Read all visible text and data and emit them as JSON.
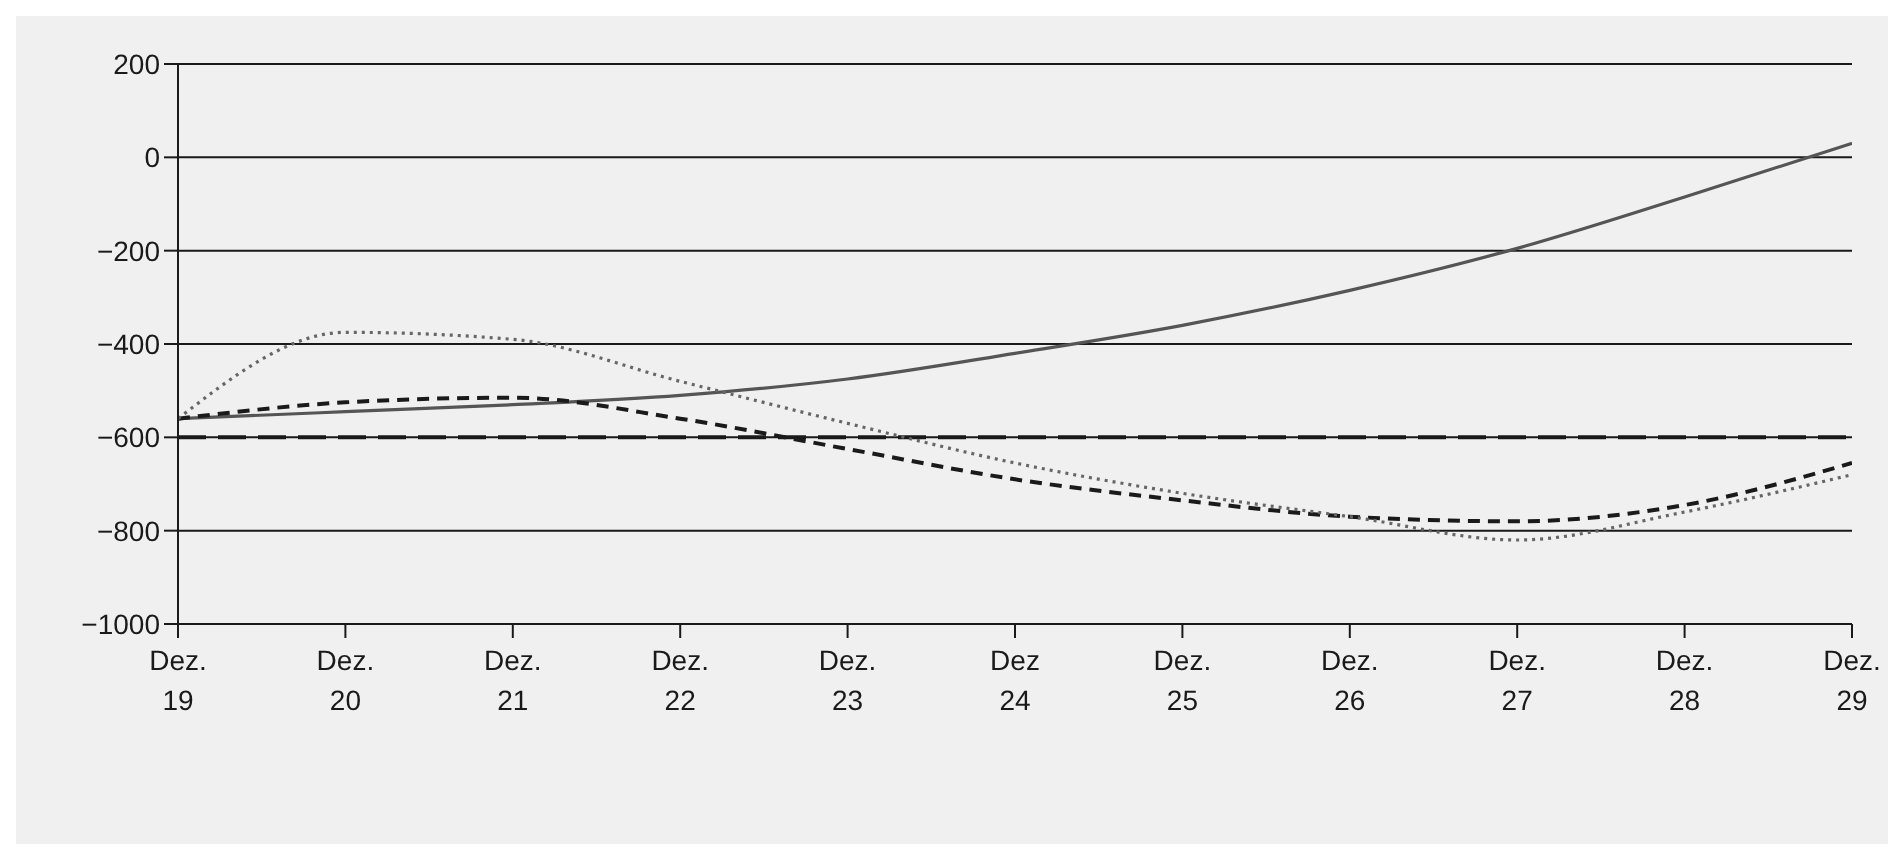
{
  "chart_data": {
    "type": "line",
    "categories": [
      "Dez.\n19",
      "Dez.\n20",
      "Dez.\n21",
      "Dez.\n22",
      "Dez.\n23",
      "Dez\n24",
      "Dez.\n25",
      "Dez.\n26",
      "Dez.\n27",
      "Dez.\n28",
      "Dez.\n29"
    ],
    "series": [
      {
        "color": "#555555",
        "line_style": "solid",
        "values": [
          -560,
          -545,
          -530,
          -510,
          -475,
          -420,
          -360,
          -285,
          -195,
          -85,
          30
        ]
      },
      {
        "color": "#1a1a1a",
        "line_style": "dashed",
        "values": [
          -560,
          -525,
          -515,
          -560,
          -625,
          -690,
          -735,
          -770,
          -780,
          -745,
          -655
        ]
      },
      {
        "color": "#666666",
        "line_style": "dotted",
        "values": [
          -560,
          -375,
          -390,
          -480,
          -570,
          -655,
          -720,
          -770,
          -820,
          -760,
          -680
        ]
      }
    ],
    "ylim": [
      -1000,
      200
    ],
    "yticks": [
      -1000,
      -800,
      -600,
      -400,
      -200,
      0,
      200
    ],
    "ref_lines": [
      {
        "axis": "y",
        "value": -600,
        "color": "#1a1a1a",
        "line_style": "dashed"
      }
    ],
    "grid": "y",
    "marker": "none"
  }
}
